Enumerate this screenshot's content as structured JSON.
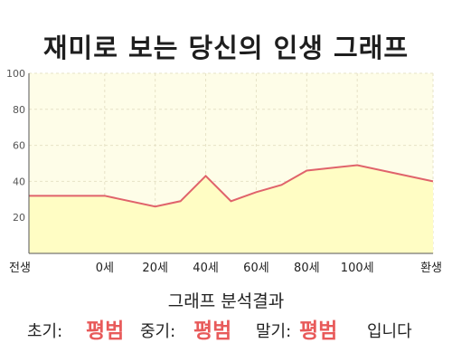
{
  "page_title": "재미로 보는 당신의 인생 그래프",
  "chart_data": {
    "type": "area",
    "title": "재미로 보는 당신의 인생 그래프",
    "x": [
      "전생",
      "0세",
      "20세",
      "40세",
      "60세",
      "80세",
      "100세",
      "환생"
    ],
    "x_numeric": [
      -30,
      0,
      20,
      40,
      60,
      80,
      100,
      130
    ],
    "points": [
      {
        "x": -30,
        "y": 32
      },
      {
        "x": 0,
        "y": 32
      },
      {
        "x": 20,
        "y": 26
      },
      {
        "x": 30,
        "y": 29
      },
      {
        "x": 40,
        "y": 43
      },
      {
        "x": 50,
        "y": 29
      },
      {
        "x": 60,
        "y": 34
      },
      {
        "x": 70,
        "y": 38
      },
      {
        "x": 80,
        "y": 46
      },
      {
        "x": 100,
        "y": 49
      },
      {
        "x": 130,
        "y": 40
      }
    ],
    "y_ticks": [
      20,
      40,
      60,
      80,
      100
    ],
    "ylim": [
      0,
      100
    ],
    "grid": true,
    "colors": {
      "line": "#e0636b",
      "fill": "#fffdc4",
      "plot_bg": "#fefde8",
      "grid": "#e6e2c6"
    }
  },
  "result": {
    "title": "그래프 분석결과",
    "early_label": "초기:",
    "early_value": "평범",
    "mid_label": "중기:",
    "mid_value": "평범",
    "late_label": "말기:",
    "late_value": "평범",
    "suffix": "입니다"
  },
  "colors": {
    "highlight": "#e85a5a"
  }
}
